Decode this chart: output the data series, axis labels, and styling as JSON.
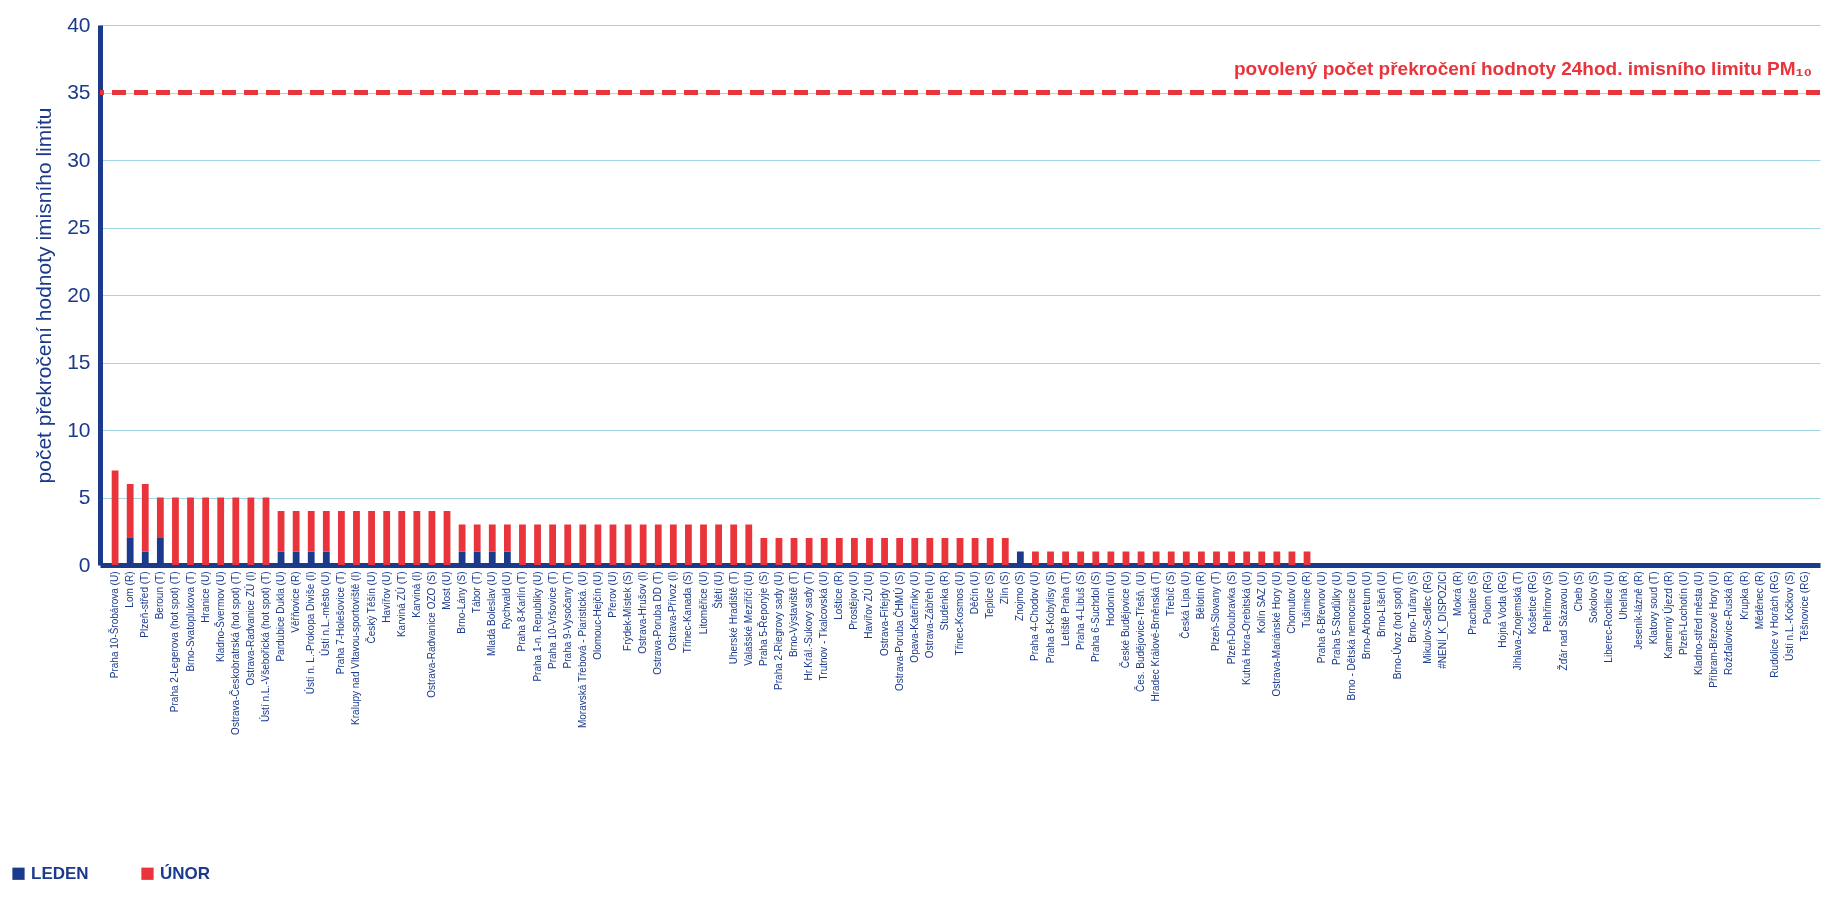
{
  "chart_data": {
    "type": "bar",
    "ylabel": "počet překročení hodnoty imisního limitu",
    "categories": [
      "Praha 10-Šrobárova (U)",
      "Lom (R)",
      "Plzeň-střed (T)",
      "Beroun (T)",
      "Praha 2-Legerova (hot spot) (T)",
      "Brno-Svatoplukova (T)",
      "Hranice (U)",
      "Kladno-Švermov (U)",
      "Ostrava-Českobratrská (hot spot) (T)",
      "Ostrava-Radvanice ZÚ (I)",
      "Ústí n.L.-Všebořická (hot spot) (T)",
      "Pardubice Dukla (U)",
      "Věřňovice (R)",
      "Ústí n. L.-Prokopa Diviše (I)",
      "Ústí n.L.-město (U)",
      "Praha 7-Holešovice (T)",
      "Kralupy nad Vltavou-sportoviště (I)",
      "Český Těšín (U)",
      "Havířov (U)",
      "Karviná ZÚ (T)",
      "Karviná (I)",
      "Ostrava-Radvanice OZO (S)",
      "Most (U)",
      "Brno-Lány (S)",
      "Tábor (T)",
      "Mladá Boleslav (U)",
      "Rychvald (U)",
      "Praha 8-Karlín (T)",
      "Praha 1-n. Republiky (U)",
      "Praha 10-Vršovice (T)",
      "Praha 9-Vysočany (T)",
      "Moravská Třebová - Piaristická. (U)",
      "Olomouc-Hejčín (U)",
      "Přerov (U)",
      "Frýdek-Místek (S)",
      "Ostrava-Hrušov (I)",
      "Ostrava-Poruba DD (T)",
      "Ostrava-Přívoz (I)",
      "Třinec-Kanada (S)",
      "Litoměřice (U)",
      "Štětí (U)",
      "Uherské Hradiště (T)",
      "Valašské Meziříčí (U)",
      "Praha 5-Řeporyje (S)",
      "Praha 2-Riegrovy sady (U)",
      "Brno-Výstaviště (T)",
      "Hr.Král.-Sukovy sady (T)",
      "Trutnov - Tkalcovská (U)",
      "Loštice (R)",
      "Prostějov (U)",
      "Havířov ZÚ (U)",
      "Ostrava-Fifejdy (U)",
      "Ostrava-Poruba ČHMÚ (S)",
      "Opava-Kateřinky (U)",
      "Ostrava-Zábřeh (U)",
      "Studénka (R)",
      "Třinec-Kosmos (U)",
      "Děčín (U)",
      "Teplice (S)",
      "Zlín (S)",
      "Znojmo (S)",
      "Praha 4-Chodov (U)",
      "Praha 8-Kobylisy (S)",
      "Letiště Praha (T)",
      "Praha 4-Libuš (S)",
      "Praha 6-Suchdol (S)",
      "Hodonín (U)",
      "České Budějovice (U)",
      "Čes. Budějovice-Třešň. (U)",
      "Hradec Králové-Brněnská (T)",
      "Třebíč (S)",
      "Česká Lípa (U)",
      "Bělotín (R)",
      "Plzeň-Slovany (T)",
      "Plzeň-Doubravka (S)",
      "Kutná Hora-Orebitská (U)",
      "Kolín SAZ (U)",
      "Ostrava-Mariánské Hory (U)",
      "Chomutov (U)",
      "Tušimice (R)",
      "Praha 6-Břevnov (U)",
      "Praha 5-Stodůlky (U)",
      "Brno - Dětská nemocnice (U)",
      "Brno-Arboretum (U)",
      "Brno-Líšeň (U)",
      "Brno-Úvoz (hot spot) (T)",
      "Brno-Tuřany (S)",
      "Mikulov-Sedlec (RG)",
      "#NENÍ_K_DISPOZICI",
      "Mokrá (R)",
      "Prachatice (S)",
      "Polom (RG)",
      "Hojná Voda (RG)",
      "Jihlava-Znojemská (T)",
      "Košetice (RG)",
      "Pelhřimov (S)",
      "Žďár nad Sázavou (U)",
      "Cheb (S)",
      "Sokolov (S)",
      "Liberec-Rochlice (U)",
      "Uhelná (R)",
      "Jeseník-lázně (R)",
      "Klatovy soud (T)",
      "Kamenný Újezd (R)",
      "Plzeň-Lochotín (U)",
      "Kladno-střed města (U)",
      "Příbram-Březové Hory (U)",
      "Rožďalovice-Ruská (R)",
      "Krupka (R)",
      "Měděnec (R)",
      "Rudolice v Horách (RG)",
      "Ústí n.L.-Kočkov (S)",
      "Těšnovice (RG)"
    ],
    "series": [
      {
        "name": "LEDEN",
        "color": "#1b3a8c",
        "values": [
          0,
          2,
          1,
          2,
          0,
          0,
          0,
          0,
          0,
          0,
          0,
          1,
          1,
          1,
          1,
          0,
          0,
          0,
          0,
          0,
          0,
          0,
          0,
          1,
          1,
          1,
          1,
          0,
          0,
          0,
          0,
          0,
          0,
          0,
          0,
          0,
          0,
          0,
          0,
          0,
          0,
          0,
          0,
          0,
          0,
          0,
          0,
          0,
          0,
          0,
          0,
          0,
          0,
          0,
          0,
          0,
          0,
          0,
          0,
          0,
          1,
          0,
          0,
          0,
          0,
          0,
          0,
          0,
          0,
          0,
          0,
          0,
          0,
          0,
          0,
          0,
          0,
          0,
          0,
          0,
          0,
          0,
          0,
          0,
          0,
          0,
          0,
          0,
          0,
          0,
          0,
          0,
          0,
          0,
          0,
          0,
          0,
          0,
          0,
          0,
          0,
          0,
          0,
          0,
          0,
          0,
          0,
          0,
          0,
          0,
          0,
          0,
          0
        ]
      },
      {
        "name": "ÚNOR",
        "color": "#e8343a",
        "values": [
          7,
          4,
          5,
          3,
          5,
          5,
          5,
          5,
          5,
          5,
          5,
          3,
          3,
          3,
          3,
          4,
          4,
          4,
          4,
          4,
          4,
          4,
          4,
          2,
          2,
          2,
          2,
          3,
          3,
          3,
          3,
          3,
          3,
          3,
          3,
          3,
          3,
          3,
          3,
          3,
          3,
          3,
          3,
          2,
          2,
          2,
          2,
          2,
          2,
          2,
          2,
          2,
          2,
          2,
          2,
          2,
          2,
          2,
          2,
          2,
          0,
          1,
          1,
          1,
          1,
          1,
          1,
          1,
          1,
          1,
          1,
          1,
          1,
          1,
          1,
          1,
          1,
          1,
          1,
          1,
          0,
          0,
          0,
          0,
          0,
          0,
          0,
          0,
          0,
          0,
          0,
          0,
          0,
          0,
          0,
          0,
          0,
          0,
          0,
          0,
          0,
          0,
          0,
          0,
          0,
          0,
          0,
          0,
          0,
          0,
          0,
          0,
          0
        ]
      }
    ],
    "stacked": true,
    "ylim": [
      0,
      40
    ],
    "yticks": [
      0,
      5,
      10,
      15,
      20,
      25,
      30,
      35,
      40
    ],
    "grid": "y",
    "legend": "bottom left",
    "ref_lines": [
      {
        "axis": "y",
        "value": 35,
        "label": "povolený počet překročení hodnoty 24hod. imisního limitu PM₁₀",
        "color": "#e8343a",
        "line_style": "dashed"
      }
    ]
  }
}
